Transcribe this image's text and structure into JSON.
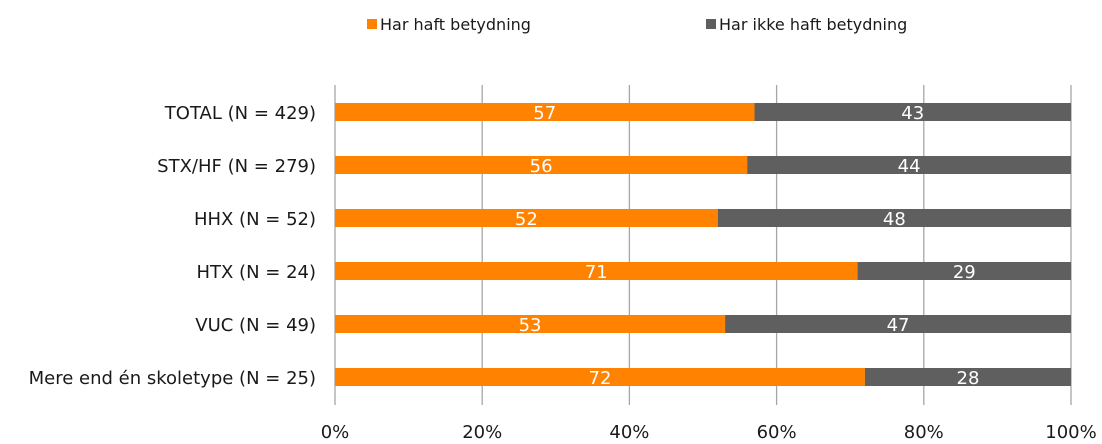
{
  "chart_data": {
    "type": "bar",
    "orientation": "horizontal",
    "stacked": true,
    "categories": [
      "TOTAL (N = 429)",
      "STX/HF (N = 279)",
      "HHX (N = 52)",
      "HTX (N = 24)",
      "VUC (N = 49)",
      "Mere end én skoletype (N = 25)"
    ],
    "series": [
      {
        "name": "Har haft betydning",
        "color": "#FF8200",
        "values": [
          57,
          56,
          52,
          71,
          53,
          72
        ]
      },
      {
        "name": "Har ikke haft betydning",
        "color": "#5F5F5F",
        "values": [
          43,
          44,
          48,
          29,
          47,
          28
        ]
      }
    ],
    "x_ticks": [
      "0%",
      "20%",
      "40%",
      "60%",
      "80%",
      "100%"
    ],
    "xlim": [
      0,
      100
    ],
    "grid": true,
    "legend_position": "top"
  }
}
